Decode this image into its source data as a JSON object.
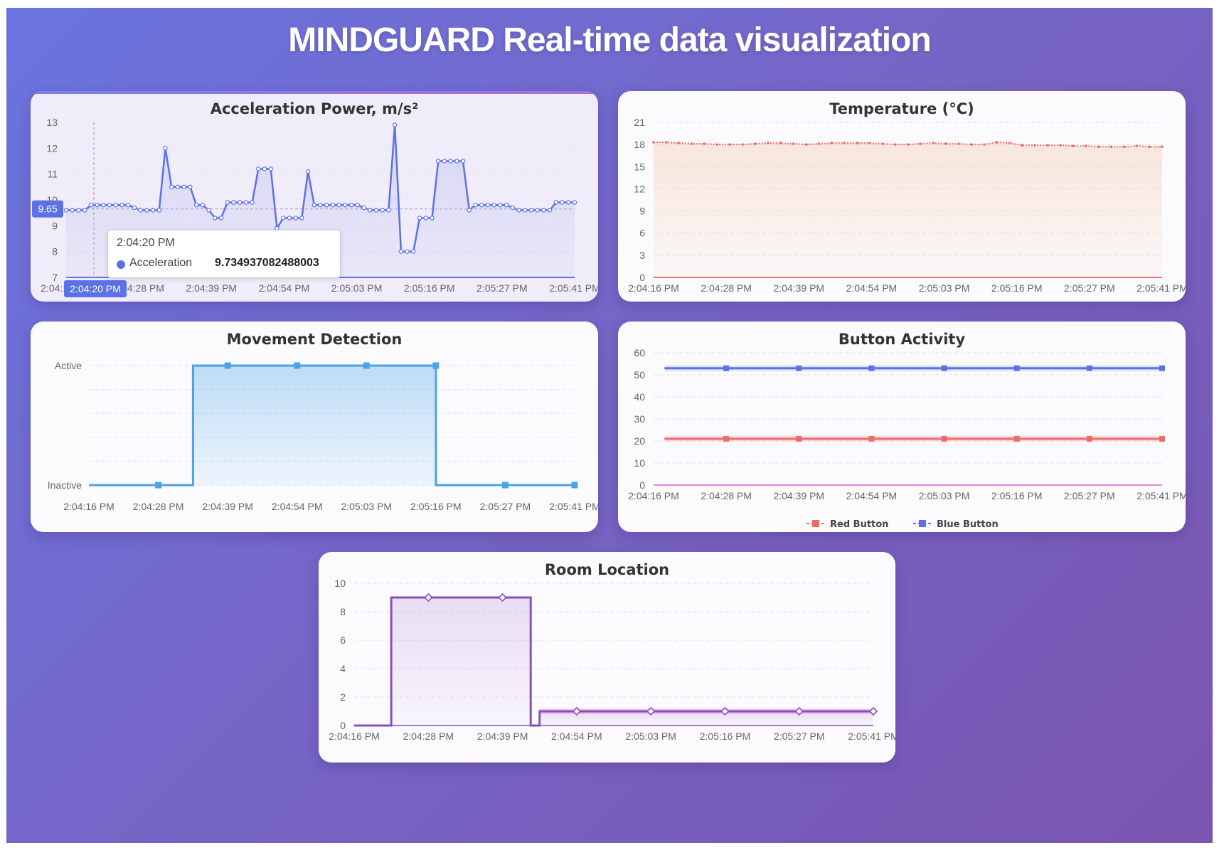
{
  "page": {
    "title": "MINDGUARD Real-time data visualization"
  },
  "chart_data": [
    {
      "id": "acceleration",
      "type": "line",
      "title": "Acceleration Power, m/s²",
      "x_tick_labels": [
        "2:04:16 PM",
        "2:04:28 PM",
        "2:04:39 PM",
        "2:04:54 PM",
        "2:05:03 PM",
        "2:05:16 PM",
        "2:05:27 PM",
        "2:05:41 PM"
      ],
      "y_ticks": [
        7,
        8,
        9,
        10,
        11,
        12,
        13
      ],
      "ylim": [
        7,
        13
      ],
      "grid": true,
      "series": [
        {
          "name": "Acceleration",
          "color": "#5b72e6",
          "values": [
            9.6,
            9.6,
            9.6,
            9.6,
            9.8,
            9.8,
            9.8,
            9.8,
            9.8,
            9.8,
            9.8,
            9.7,
            9.6,
            9.6,
            9.6,
            9.6,
            12,
            10.5,
            10.5,
            10.5,
            10.5,
            9.8,
            9.8,
            9.6,
            9.3,
            9.3,
            9.9,
            9.9,
            9.9,
            9.9,
            9.9,
            11.2,
            11.2,
            11.2,
            8.9,
            9.3,
            9.3,
            9.3,
            9.3,
            11.1,
            9.8,
            9.8,
            9.8,
            9.8,
            9.8,
            9.8,
            9.8,
            9.8,
            9.7,
            9.6,
            9.6,
            9.6,
            9.6,
            12.9,
            8,
            8,
            8,
            9.3,
            9.3,
            9.3,
            11.5,
            11.5,
            11.5,
            11.5,
            11.5,
            9.6,
            9.8,
            9.8,
            9.8,
            9.8,
            9.8,
            9.8,
            9.7,
            9.6,
            9.6,
            9.6,
            9.6,
            9.6,
            9.6,
            9.9,
            9.9,
            9.9,
            9.9
          ]
        }
      ],
      "crosshair": {
        "x_label": "2:04:20 PM",
        "y_label": "9.65"
      },
      "tooltip": {
        "time": "2:04:20 PM",
        "series": "Acceleration",
        "value": "9.734937082488003"
      }
    },
    {
      "id": "temperature",
      "type": "area",
      "title": "Temperature (°C)",
      "x_tick_labels": [
        "2:04:16 PM",
        "2:04:28 PM",
        "2:04:39 PM",
        "2:04:54 PM",
        "2:05:03 PM",
        "2:05:16 PM",
        "2:05:27 PM",
        "2:05:41 PM"
      ],
      "y_ticks": [
        0,
        3,
        6,
        9,
        12,
        15,
        18,
        21
      ],
      "ylim": [
        0,
        21
      ],
      "grid": true,
      "series": [
        {
          "color": "#ef6f6f",
          "values": [
            18.3,
            18.3,
            18.2,
            18.1,
            18.1,
            18.0,
            18.0,
            18.0,
            18.1,
            18.2,
            18.2,
            18.1,
            18.0,
            18.1,
            18.2,
            18.2,
            18.2,
            18.2,
            18.1,
            18.0,
            18.0,
            18.1,
            18.2,
            18.1,
            18.1,
            18.0,
            18.0,
            18.3,
            18.2,
            17.9,
            17.9,
            17.9,
            17.9,
            17.8,
            17.8,
            17.7,
            17.7,
            17.7,
            17.8,
            17.7,
            17.7
          ]
        }
      ]
    },
    {
      "id": "movement",
      "type": "line",
      "title": "Movement Detection",
      "x_tick_labels": [
        "2:04:16 PM",
        "2:04:28 PM",
        "2:04:39 PM",
        "2:04:54 PM",
        "2:05:03 PM",
        "2:05:16 PM",
        "2:05:27 PM",
        "2:05:41 PM"
      ],
      "y_categories": [
        "Inactive",
        "Active"
      ],
      "step": true,
      "grid": true,
      "series": [
        {
          "color": "#4aa3e8",
          "points": [
            [
              0,
              0
            ],
            [
              0.5,
              0
            ],
            [
              1,
              0
            ],
            [
              1.5,
              0
            ],
            [
              1.5,
              1
            ],
            [
              2,
              1
            ],
            [
              3,
              1
            ],
            [
              4,
              1
            ],
            [
              5,
              1
            ],
            [
              5,
              0
            ],
            [
              6,
              0
            ],
            [
              7,
              0
            ]
          ],
          "markers": [
            [
              1,
              0
            ],
            [
              2,
              1
            ],
            [
              3,
              1
            ],
            [
              4,
              1
            ],
            [
              5,
              1
            ],
            [
              6,
              0
            ],
            [
              7,
              0
            ]
          ]
        }
      ]
    },
    {
      "id": "buttons",
      "type": "line",
      "title": "Button Activity",
      "x_tick_labels": [
        "2:04:16 PM",
        "2:04:28 PM",
        "2:04:39 PM",
        "2:04:54 PM",
        "2:05:03 PM",
        "2:05:16 PM",
        "2:05:27 PM",
        "2:05:41 PM"
      ],
      "y_ticks": [
        0,
        10,
        20,
        30,
        40,
        50,
        60
      ],
      "ylim": [
        0,
        60
      ],
      "grid": true,
      "legend": "bottom-center",
      "series": [
        {
          "name": "Red Button",
          "color": "#f06a6a",
          "start_index": 0.15,
          "marker_indices": [
            1,
            2,
            3,
            4,
            5,
            6,
            7
          ],
          "value": 21
        },
        {
          "name": "Blue Button",
          "color": "#5b72e6",
          "start_index": 0.15,
          "marker_indices": [
            1,
            2,
            3,
            4,
            5,
            6,
            7
          ],
          "value": 53
        }
      ]
    },
    {
      "id": "room",
      "type": "line",
      "title": "Room Location",
      "x_tick_labels": [
        "2:04:16 PM",
        "2:04:28 PM",
        "2:04:39 PM",
        "2:04:54 PM",
        "2:05:03 PM",
        "2:05:16 PM",
        "2:05:27 PM",
        "2:05:41 PM"
      ],
      "y_ticks": [
        0,
        2,
        4,
        6,
        8,
        10
      ],
      "ylim": [
        0,
        10
      ],
      "step": true,
      "grid": true,
      "series": [
        {
          "color": "#8a4fb8",
          "points": [
            [
              0,
              0
            ],
            [
              0.5,
              0
            ],
            [
              0.5,
              9
            ],
            [
              1,
              9
            ],
            [
              2,
              9
            ],
            [
              2.38,
              9
            ],
            [
              2.38,
              0
            ],
            [
              2.5,
              0
            ],
            [
              2.5,
              1
            ],
            [
              3,
              1
            ],
            [
              4,
              1
            ],
            [
              5,
              1
            ],
            [
              6,
              1
            ],
            [
              7,
              1
            ]
          ],
          "markers": [
            [
              1,
              9
            ],
            [
              2,
              9
            ],
            [
              3,
              1
            ],
            [
              4,
              1
            ],
            [
              5,
              1
            ],
            [
              6,
              1
            ],
            [
              7,
              1
            ]
          ]
        }
      ]
    }
  ]
}
